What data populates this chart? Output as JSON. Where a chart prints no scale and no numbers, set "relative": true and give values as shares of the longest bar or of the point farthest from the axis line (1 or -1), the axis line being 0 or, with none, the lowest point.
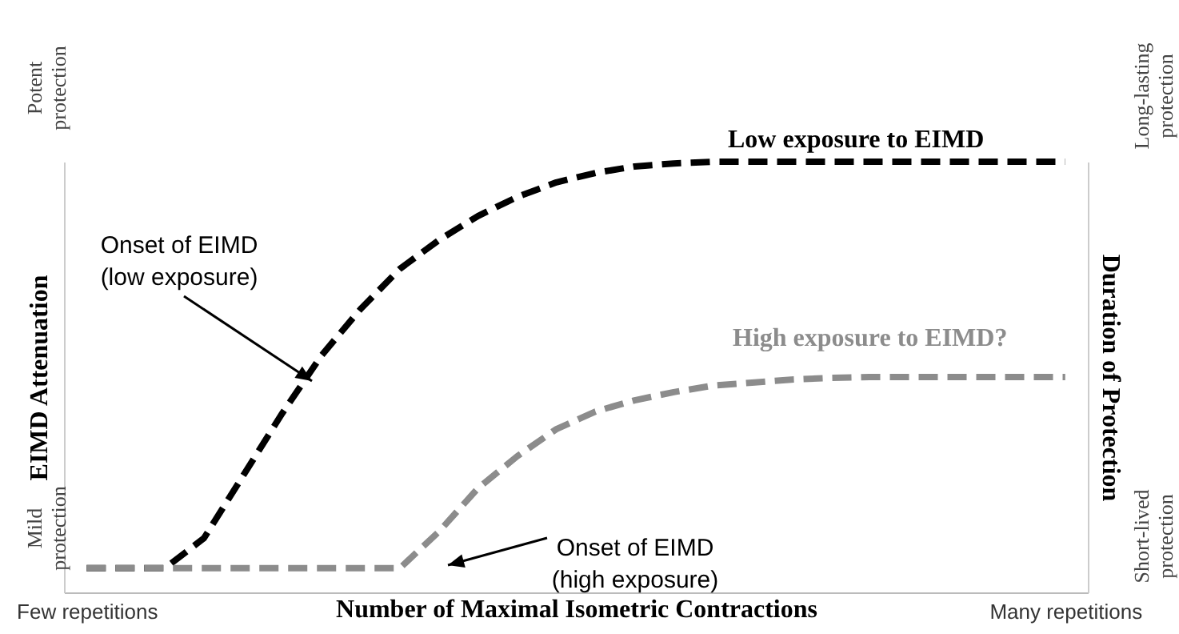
{
  "chart_data": {
    "type": "line",
    "relative": true,
    "xlabel": "Number of Maximal Isometric Contractions",
    "ylabel": "EIMD Attenuation",
    "y2label": "Duration of Protection",
    "categories": [
      "Few repetitions",
      null,
      null,
      null,
      null,
      null,
      null,
      null,
      null,
      null,
      null,
      null,
      null,
      null,
      null,
      null,
      null,
      null,
      null,
      null,
      null,
      null,
      null,
      null,
      null,
      "Many repetitions"
    ],
    "series": [
      {
        "name": "Low exposure to EIMD",
        "color": "#000000",
        "values": [
          0.056,
          0.056,
          0.056,
          0.126,
          0.271,
          0.416,
          0.55,
          0.658,
          0.751,
          0.818,
          0.874,
          0.918,
          0.952,
          0.974,
          0.989,
          0.996,
          1,
          1,
          1,
          1,
          1,
          1,
          1,
          1,
          1,
          1
        ]
      },
      {
        "name": "High exposure to EIMD?",
        "color": "#8c8c8c",
        "values": [
          0.056,
          0.056,
          0.056,
          0.056,
          0.056,
          0.056,
          0.056,
          0.056,
          0.056,
          0.141,
          0.242,
          0.316,
          0.379,
          0.42,
          0.446,
          0.465,
          0.48,
          0.487,
          0.494,
          0.498,
          0.5,
          0.5,
          0.5,
          0.5,
          0.5,
          0.5
        ]
      }
    ],
    "line_style": "dashed",
    "marker": "none",
    "grid": false,
    "annotations": [
      "Potent protection",
      "Mild protection",
      "Long-lasting protection",
      "Short-lived protection",
      "Onset of EIMD (low exposure)",
      "Onset of EIMD (high exposure)"
    ]
  }
}
